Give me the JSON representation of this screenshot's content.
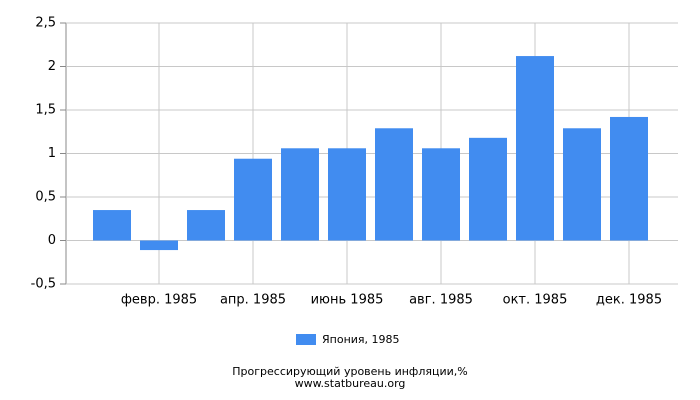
{
  "chart_data": {
    "type": "bar",
    "title": "Прогрессирующий уровень инфляции,%",
    "source": "www.statbureau.org",
    "categories": [
      null,
      "февр. 1985",
      null,
      "апр. 1985",
      null,
      "июнь 1985",
      null,
      "авг. 1985",
      null,
      "окт. 1985",
      null,
      "дек. 1985"
    ],
    "series": [
      {
        "name": "Япония, 1985",
        "color": "#418cf0",
        "values": [
          0.35,
          -0.11,
          0.35,
          0.94,
          1.06,
          1.06,
          1.29,
          1.06,
          1.18,
          2.12,
          1.29,
          1.42
        ]
      }
    ],
    "ylim": [
      -0.5,
      2.5
    ],
    "yticks": [
      {
        "value": -0.5,
        "label": "-0,5"
      },
      0,
      {
        "value": 0.5,
        "label": "0,5"
      },
      1,
      {
        "value": 1.5,
        "label": "1,5"
      },
      2,
      {
        "value": 2.5,
        "label": "2,5"
      }
    ],
    "grid": true
  }
}
